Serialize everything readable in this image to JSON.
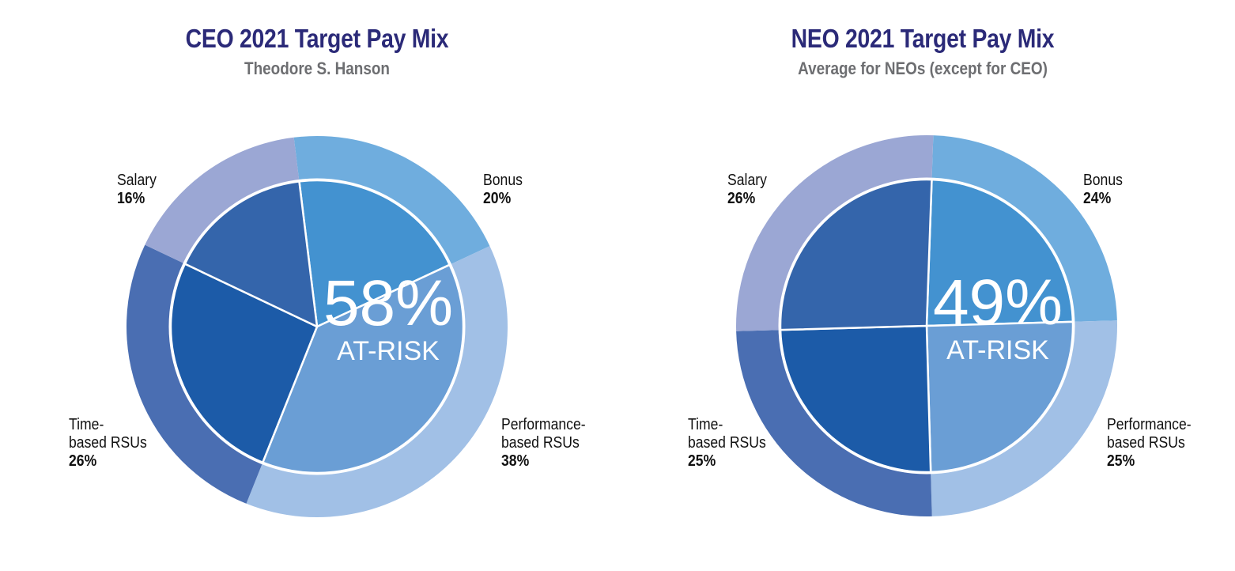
{
  "chart_data": [
    {
      "type": "pie",
      "title": "CEO 2021 Target Pay Mix",
      "subtitle": "Theodore S. Hanson",
      "center_value": "58%",
      "center_label": "AT-RISK",
      "start_angle_deg": -7,
      "slices": [
        {
          "name": "Bonus",
          "value": 20,
          "label": "20%",
          "outer_color": "#6fadde",
          "inner_color": "#4392d0"
        },
        {
          "name": "Performance-based RSUs",
          "line1": "Performance-",
          "line2": "based RSUs",
          "value": 38,
          "label": "38%",
          "outer_color": "#a1c0e6",
          "inner_color": "#6a9ed5"
        },
        {
          "name": "Time-based RSUs",
          "line1": "Time-",
          "line2": "based RSUs",
          "value": 26,
          "label": "26%",
          "outer_color": "#4a6eb2",
          "inner_color": "#1c5ba8"
        },
        {
          "name": "Salary",
          "value": 16,
          "label": "16%",
          "outer_color": "#9ba7d4",
          "inner_color": "#3465ab"
        }
      ]
    },
    {
      "type": "pie",
      "title": "NEO 2021 Target Pay Mix",
      "subtitle": "Average for NEOs (except for CEO)",
      "center_value": "49%",
      "center_label": "AT-RISK",
      "start_angle_deg": 2,
      "slices": [
        {
          "name": "Bonus",
          "value": 24,
          "label": "24%",
          "outer_color": "#6fadde",
          "inner_color": "#4392d0"
        },
        {
          "name": "Performance-based RSUs",
          "line1": "Performance-",
          "line2": "based RSUs",
          "value": 25,
          "label": "25%",
          "outer_color": "#a1c0e6",
          "inner_color": "#6a9ed5"
        },
        {
          "name": "Time-based RSUs",
          "line1": "Time-",
          "line2": "based RSUs",
          "value": 25,
          "label": "25%",
          "outer_color": "#4a6eb2",
          "inner_color": "#1c5ba8"
        },
        {
          "name": "Salary",
          "value": 26,
          "label": "26%",
          "outer_color": "#9ba7d4",
          "inner_color": "#3465ab"
        }
      ]
    }
  ]
}
